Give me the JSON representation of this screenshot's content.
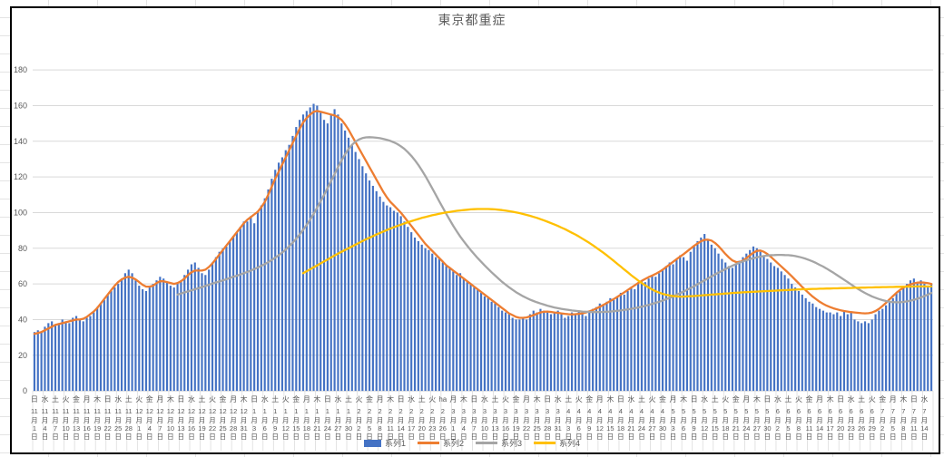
{
  "title": "東京都重症",
  "y_axis": {
    "ticks": [
      0,
      20,
      40,
      60,
      80,
      100,
      120,
      140,
      160,
      180
    ],
    "max": 180,
    "tick_color": "#595959",
    "gridline_color": "#d9d9d9"
  },
  "legend": [
    {
      "label": "系列1",
      "type": "bar",
      "color": "#4472C4"
    },
    {
      "label": "系列2",
      "type": "line",
      "color": "#ED7D31"
    },
    {
      "label": "系列3",
      "type": "line",
      "color": "#A5A5A5"
    },
    {
      "label": "系列4",
      "type": "line",
      "color": "#FFC000"
    }
  ],
  "x_labels": [
    [
      "日",
      11,
      1
    ],
    [
      "水",
      11,
      4
    ],
    [
      "土",
      11,
      7
    ],
    [
      "火",
      11,
      10
    ],
    [
      "金",
      11,
      13
    ],
    [
      "月",
      11,
      16
    ],
    [
      "木",
      11,
      19
    ],
    [
      "日",
      11,
      22
    ],
    [
      "水",
      11,
      25
    ],
    [
      "土",
      11,
      28
    ],
    [
      "火",
      12,
      1
    ],
    [
      "金",
      12,
      4
    ],
    [
      "月",
      12,
      7
    ],
    [
      "木",
      12,
      10
    ],
    [
      "日",
      12,
      13
    ],
    [
      "水",
      12,
      16
    ],
    [
      "土",
      12,
      19
    ],
    [
      "火",
      12,
      22
    ],
    [
      "金",
      12,
      25
    ],
    [
      "月",
      12,
      28
    ],
    [
      "木",
      12,
      31
    ],
    [
      "日",
      1,
      3
    ],
    [
      "水",
      1,
      6
    ],
    [
      "土",
      1,
      9
    ],
    [
      "火",
      1,
      12
    ],
    [
      "金",
      1,
      15
    ],
    [
      "月",
      1,
      18
    ],
    [
      "木",
      1,
      21
    ],
    [
      "日",
      1,
      24
    ],
    [
      "水",
      1,
      27
    ],
    [
      "土",
      1,
      30
    ],
    [
      "火",
      2,
      2
    ],
    [
      "金",
      2,
      5
    ],
    [
      "月",
      2,
      8
    ],
    [
      "木",
      2,
      11
    ],
    [
      "日",
      2,
      14
    ],
    [
      "水",
      2,
      17
    ],
    [
      "土",
      2,
      20
    ],
    [
      "火",
      2,
      23
    ],
    [
      "ha",
      2,
      26
    ],
    [
      "月",
      3,
      1
    ],
    [
      "木",
      3,
      4
    ],
    [
      "日",
      3,
      7
    ],
    [
      "水",
      3,
      10
    ],
    [
      "土",
      3,
      13
    ],
    [
      "火",
      3,
      16
    ],
    [
      "金",
      3,
      19
    ],
    [
      "月",
      3,
      22
    ],
    [
      "木",
      3,
      25
    ],
    [
      "日",
      3,
      28
    ],
    [
      "水",
      3,
      31
    ],
    [
      "土",
      4,
      3
    ],
    [
      "火",
      4,
      6
    ],
    [
      "金",
      4,
      9
    ],
    [
      "月",
      4,
      12
    ],
    [
      "木",
      4,
      15
    ],
    [
      "日",
      4,
      18
    ],
    [
      "水",
      4,
      21
    ],
    [
      "土",
      4,
      24
    ],
    [
      "火",
      4,
      27
    ],
    [
      "金",
      4,
      30
    ],
    [
      "月",
      5,
      3
    ],
    [
      "木",
      5,
      6
    ],
    [
      "日",
      5,
      9
    ],
    [
      "水",
      5,
      12
    ],
    [
      "土",
      5,
      15
    ],
    [
      "火",
      5,
      18
    ],
    [
      "金",
      5,
      21
    ],
    [
      "月",
      5,
      24
    ],
    [
      "木",
      5,
      27
    ],
    [
      "日",
      5,
      30
    ],
    [
      "水",
      6,
      2
    ],
    [
      "土",
      6,
      5
    ],
    [
      "火",
      6,
      8
    ],
    [
      "金",
      6,
      11
    ],
    [
      "月",
      6,
      14
    ],
    [
      "木",
      6,
      17
    ],
    [
      "日",
      6,
      20
    ],
    [
      "水",
      6,
      23
    ],
    [
      "土",
      6,
      26
    ],
    [
      "火",
      6,
      29
    ],
    [
      "金",
      7,
      2
    ],
    [
      "月",
      7,
      5
    ],
    [
      "木",
      7,
      8
    ],
    [
      "日",
      7,
      11
    ],
    [
      "水",
      7,
      14
    ]
  ],
  "chart_data": {
    "type": "combo-bar-line",
    "x_start_label": "11月1日",
    "x_end_label": "7月14日",
    "x_label_interval_days": 3,
    "ylim": [
      0,
      180
    ],
    "grid": true,
    "legend_position": "bottom",
    "series": [
      {
        "name": "系列1",
        "type": "bar",
        "color": "#4472C4",
        "start_index": 0,
        "values": [
          33,
          34,
          33,
          36,
          38,
          39,
          37,
          38,
          40,
          39,
          38,
          41,
          42,
          40,
          39,
          41,
          42,
          44,
          47,
          49,
          51,
          54,
          56,
          58,
          60,
          63,
          66,
          68,
          66,
          62,
          59,
          57,
          56,
          58,
          60,
          62,
          64,
          63,
          61,
          59,
          58,
          60,
          62,
          65,
          68,
          71,
          72,
          69,
          66,
          65,
          68,
          72,
          75,
          78,
          80,
          81,
          84,
          87,
          89,
          92,
          95,
          95,
          98,
          94,
          100,
          104,
          108,
          113,
          119,
          124,
          128,
          131,
          135,
          138,
          143,
          148,
          152,
          155,
          157,
          159,
          161,
          160,
          156,
          152,
          150,
          155,
          158,
          155,
          150,
          146,
          142,
          138,
          134,
          130,
          126,
          122,
          118,
          115,
          112,
          109,
          106,
          104,
          103,
          101,
          100,
          98,
          95,
          92,
          89,
          86,
          84,
          82,
          80,
          79,
          77,
          75,
          74,
          72,
          70,
          69,
          67,
          65,
          66,
          63,
          61,
          60,
          58,
          57,
          55,
          53,
          52,
          50,
          49,
          47,
          45,
          44,
          43,
          41,
          40,
          40,
          41,
          40,
          43,
          45,
          44,
          46,
          45,
          44,
          43,
          44,
          45,
          43,
          41,
          42,
          44,
          43,
          45,
          44,
          42,
          45,
          46,
          47,
          49,
          48,
          50,
          52,
          51,
          53,
          55,
          54,
          56,
          58,
          57,
          60,
          62,
          61,
          63,
          65,
          64,
          66,
          68,
          70,
          72,
          71,
          74,
          76,
          75,
          73,
          78,
          81,
          84,
          86,
          88,
          85,
          82,
          80,
          77,
          74,
          72,
          70,
          69,
          71,
          73,
          75,
          77,
          79,
          81,
          80,
          78,
          76,
          74,
          72,
          70,
          69,
          67,
          65,
          63,
          60,
          58,
          56,
          54,
          52,
          50,
          49,
          47,
          46,
          45,
          44,
          44,
          43,
          44,
          42,
          45,
          43,
          44,
          40,
          39,
          38,
          39,
          38,
          40,
          43,
          45,
          46,
          48,
          50,
          52,
          55,
          56,
          58,
          60,
          62,
          63,
          61,
          62,
          60,
          58,
          60
        ]
      },
      {
        "name": "系列2",
        "type": "line",
        "color": "#ED7D31",
        "start_index": 0,
        "values": [
          32,
          32.5,
          33,
          34,
          35,
          36,
          37,
          37.5,
          38,
          38.5,
          39,
          39.5,
          40,
          40,
          40.5,
          41.5,
          43,
          44.5,
          46.5,
          49,
          51.5,
          54,
          56.5,
          59,
          61,
          62.5,
          63.5,
          64,
          63.5,
          62.5,
          61,
          59.5,
          58.5,
          58.5,
          59,
          60.5,
          61.5,
          61.5,
          61,
          60.5,
          60,
          60.5,
          61.5,
          63,
          65,
          66.5,
          67.5,
          67.5,
          67.5,
          68,
          69.5,
          71.5,
          74,
          76.5,
          79,
          81.5,
          84,
          86.5,
          89,
          91.5,
          94,
          96,
          97.5,
          99,
          100.5,
          103,
          106,
          110,
          114.5,
          119,
          123,
          127,
          131,
          135,
          139,
          143,
          147,
          150.5,
          153,
          155,
          156.5,
          157,
          156.5,
          156,
          155.5,
          155,
          154.5,
          153.5,
          152,
          149.5,
          146.5,
          143,
          139.5,
          136,
          132.5,
          129,
          125.5,
          122,
          118.5,
          115,
          111.5,
          108.5,
          106,
          104,
          102,
          100,
          97.5,
          95,
          92.5,
          90,
          87.5,
          85,
          82.5,
          80.5,
          78.5,
          76.5,
          74.5,
          72.5,
          70.5,
          69,
          67.5,
          66,
          64.5,
          63,
          61.5,
          60,
          58.5,
          57,
          55.5,
          54,
          52.5,
          51,
          49.5,
          48,
          46.5,
          45,
          43.5,
          42.5,
          41.5,
          41,
          41,
          41.2,
          41.8,
          42.5,
          43.3,
          44,
          44.4,
          44.5,
          44.3,
          44,
          43.8,
          43.5,
          43.2,
          43,
          42.9,
          43,
          43.2,
          43.5,
          44,
          44.6,
          45.3,
          46.2,
          47.2,
          48.2,
          49.3,
          50.4,
          51.5,
          52.7,
          54,
          55.3,
          56.6,
          57.9,
          59.2,
          60.5,
          61.7,
          62.8,
          63.8,
          64.7,
          65.6,
          66.7,
          68,
          69.4,
          70.9,
          72.4,
          73.9,
          75.3,
          76.7,
          78.2,
          79.8,
          81.3,
          82.7,
          83.9,
          84.7,
          84.8,
          84.3,
          83,
          81.2,
          79,
          76.8,
          74.8,
          73.2,
          72.3,
          72.2,
          73,
          74.4,
          76,
          77.5,
          78.5,
          78.7,
          78,
          76.8,
          75.2,
          73.4,
          71.6,
          69.8,
          68,
          66.2,
          64.3,
          62.3,
          60.3,
          58.3,
          56.4,
          54.6,
          52.9,
          51.4,
          50,
          48.8,
          47.8,
          47,
          46.3,
          45.7,
          45.2,
          44.8,
          44.5,
          44.2,
          44,
          43.8,
          43.6,
          43.5,
          43.6,
          44,
          44.8,
          46,
          47.6,
          49.4,
          51.3,
          53.2,
          55,
          56.6,
          57.9,
          58.9,
          59.7,
          60.3,
          60.7,
          60.8,
          60.7,
          60.4,
          60
        ]
      },
      {
        "name": "系列3",
        "type": "line",
        "color": "#A5A5A5",
        "start_index": 41,
        "values": [
          54,
          54.6,
          55.2,
          55.8,
          56.4,
          57,
          57.6,
          58.2,
          58.9,
          59.5,
          60.2,
          60.8,
          61.4,
          62,
          62.6,
          63.3,
          64,
          64.6,
          65.3,
          66,
          66.7,
          67.5,
          68.3,
          69.2,
          70.1,
          71.1,
          72.2,
          73.4,
          74.7,
          76.1,
          77.6,
          79.3,
          81.1,
          83.1,
          85.3,
          87.7,
          90.3,
          93.1,
          96.1,
          99.3,
          102.7,
          106.3,
          110,
          113.8,
          117.7,
          121.6,
          125.5,
          129.2,
          132.6,
          135.6,
          138,
          139.8,
          141,
          141.8,
          142.2,
          142.3,
          142.2,
          142,
          141.7,
          141.3,
          140.8,
          140.2,
          139.4,
          138.4,
          137.2,
          135.7,
          133.9,
          131.8,
          129.4,
          126.7,
          123.7,
          120.5,
          117.1,
          113.6,
          110,
          106.4,
          102.8,
          99.3,
          95.9,
          92.6,
          89.5,
          86.6,
          83.9,
          81.4,
          79,
          76.7,
          74.5,
          72.4,
          70.4,
          68.4,
          66.5,
          64.7,
          62.9,
          61.2,
          59.6,
          58.1,
          56.7,
          55.4,
          54.2,
          53.1,
          52.1,
          51.2,
          50.4,
          49.7,
          49,
          48.4,
          47.8,
          47.3,
          46.8,
          46.4,
          46,
          45.7,
          45.4,
          45.1,
          44.9,
          44.7,
          44.5,
          44.4,
          44.3,
          44.2,
          44.2,
          44.2,
          44.3,
          44.4,
          44.5,
          44.7,
          44.9,
          45.1,
          45.4,
          45.7,
          46,
          46.4,
          46.8,
          47.2,
          47.7,
          48.2,
          48.8,
          49.4,
          50,
          50.7,
          51.4,
          52.2,
          53,
          53.9,
          54.8,
          55.7,
          56.7,
          57.7,
          58.7,
          59.8,
          60.9,
          62,
          63.1,
          64.2,
          65.3,
          66.3,
          67.3,
          68.3,
          69.3,
          70.2,
          71.1,
          71.9,
          72.6,
          73.3,
          73.9,
          74.4,
          74.9,
          75.3,
          75.6,
          75.9,
          76.1,
          76.2,
          76.3,
          76.3,
          76.2,
          76.1,
          75.9,
          75.6,
          75.2,
          74.7,
          74.1,
          73.4,
          72.6,
          71.7,
          70.7,
          69.7,
          68.6,
          67.4,
          66.2,
          64.9,
          63.6,
          62.3,
          61,
          59.7,
          58.4,
          57.2,
          56,
          54.9,
          53.9,
          53,
          52.2,
          51.5,
          50.9,
          50.4,
          50,
          49.8,
          49.7,
          49.7,
          49.9,
          50.2,
          50.6,
          51.1,
          51.7,
          52.4,
          53.2,
          54,
          54.9
        ]
      },
      {
        "name": "系列4",
        "type": "line",
        "color": "#FFC000",
        "start_index": 77,
        "values": [
          66,
          67.1,
          68.2,
          69.3,
          70.4,
          71.5,
          72.6,
          73.7,
          74.8,
          75.9,
          77,
          78,
          79,
          80,
          81,
          82,
          83,
          84,
          85,
          85.9,
          86.8,
          87.7,
          88.6,
          89.4,
          90.2,
          91,
          91.8,
          92.5,
          93.2,
          93.9,
          94.6,
          95.2,
          95.8,
          96.4,
          97,
          97.5,
          98,
          98.5,
          98.9,
          99.3,
          99.7,
          100.1,
          100.4,
          100.7,
          101,
          101.2,
          101.4,
          101.6,
          101.8,
          101.9,
          102,
          102,
          102,
          102,
          101.9,
          101.8,
          101.6,
          101.4,
          101.1,
          100.8,
          100.5,
          100.1,
          99.7,
          99.2,
          98.7,
          98.2,
          97.6,
          97,
          96.3,
          95.6,
          94.9,
          94.1,
          93.3,
          92.5,
          91.6,
          90.7,
          89.7,
          88.7,
          87.7,
          86.6,
          85.4,
          84.2,
          83,
          81.7,
          80.3,
          78.9,
          77.5,
          76,
          74.5,
          72.9,
          71.3,
          69.7,
          68.1,
          66.5,
          64.9,
          63.4,
          61.9,
          60.5,
          59.2,
          58,
          56.9,
          55.9,
          55.1,
          54.4,
          53.9,
          53.5,
          53.2,
          53,
          52.9,
          52.9,
          53,
          53.1,
          53.2,
          53.4,
          53.5,
          53.7,
          53.8,
          54,
          54.1,
          54.3,
          54.4,
          54.6,
          54.7,
          54.9,
          55,
          55.1,
          55.3,
          55.4,
          55.5,
          55.6,
          55.7,
          55.8,
          55.9,
          56,
          56.1,
          56.2,
          56.3,
          56.4,
          56.5,
          56.6,
          56.7,
          56.8,
          56.9,
          57,
          57,
          57.1,
          57.2,
          57.2,
          57.3,
          57.3,
          57.4,
          57.4,
          57.5,
          57.5,
          57.6,
          57.6,
          57.7,
          57.7,
          57.8,
          57.8,
          57.9,
          57.9,
          58,
          58,
          58.1,
          58.1,
          58.2,
          58.2,
          58.3,
          58.3,
          58.4,
          58.4,
          58.5,
          58.5,
          58.5,
          58.6,
          58.6,
          58.6,
          58.6,
          58.6,
          58.6
        ]
      }
    ]
  }
}
